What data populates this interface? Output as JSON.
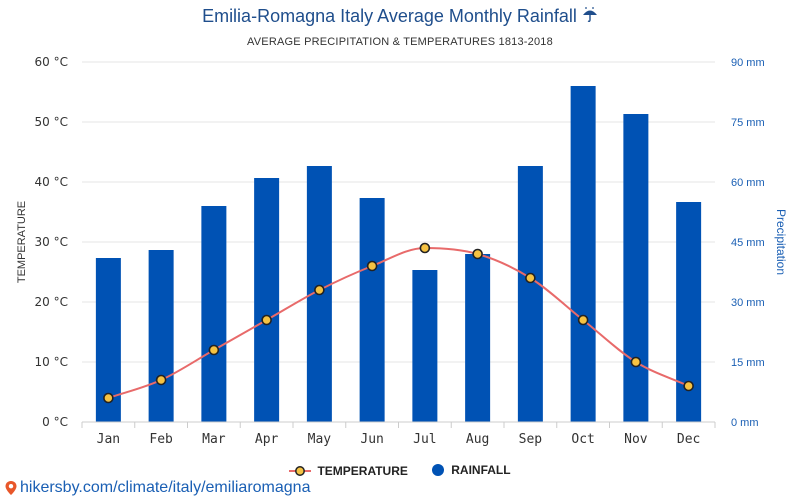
{
  "header": {
    "title": "Emilia-Romagna Italy Average Monthly Rainfall",
    "title_icon": "umbrella-rain-icon",
    "subtitle": "AVERAGE PRECIPITATION & TEMPERATURES 1813-2018"
  },
  "source": {
    "text": "hikersby.com/climate/italy/emiliaromagna",
    "icon": "location-pin-icon"
  },
  "chart_data": {
    "type": "bar",
    "categories": [
      "Jan",
      "Feb",
      "Mar",
      "Apr",
      "May",
      "Jun",
      "Jul",
      "Aug",
      "Sep",
      "Oct",
      "Nov",
      "Dec"
    ],
    "series": [
      {
        "name": "RAINFALL",
        "kind": "bar",
        "axis": "right",
        "color": "#0052b4",
        "values": [
          41,
          43,
          54,
          61,
          64,
          56,
          38,
          42,
          64,
          84,
          77,
          55
        ]
      },
      {
        "name": "TEMPERATURE",
        "kind": "line",
        "axis": "left",
        "color": "#e86a6a",
        "marker_fill": "#f5c242",
        "marker_stroke": "#222222",
        "values": [
          4,
          7,
          12,
          17,
          22,
          26,
          29,
          28,
          24,
          17,
          10,
          6
        ]
      }
    ],
    "y_left": {
      "label": "TEMPERATURE",
      "unit": "°C",
      "ylim": [
        0,
        60
      ],
      "ticks": [
        "0 °C",
        "10 °C",
        "20 °C",
        "30 °C",
        "40 °C",
        "50 °C",
        "60 °C"
      ]
    },
    "y_right": {
      "label": "Precipitation",
      "unit": "mm",
      "ylim": [
        0,
        90
      ],
      "ticks": [
        "0 mm",
        "15 mm",
        "30 mm",
        "45 mm",
        "60 mm",
        "75 mm",
        "90 mm"
      ]
    },
    "grid": true,
    "legend": {
      "placement": "bottom-center",
      "entries": [
        "TEMPERATURE",
        "RAINFALL"
      ]
    }
  }
}
